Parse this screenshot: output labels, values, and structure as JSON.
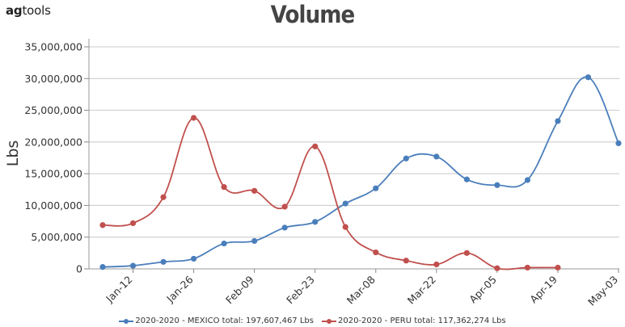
{
  "brand": {
    "part1": "ag",
    "part2": "tools"
  },
  "chart_data": {
    "type": "line",
    "title": "Volume",
    "xlabel": "",
    "ylabel": "Lbs",
    "ylim": [
      0,
      35000000
    ],
    "yticks": [
      "0",
      "5,000,000",
      "10,000,000",
      "15,000,000",
      "20,000,000",
      "25,000,000",
      "30,000,000",
      "35,000,000"
    ],
    "ytick_values": [
      0,
      5000000,
      10000000,
      15000000,
      20000000,
      25000000,
      30000000,
      35000000
    ],
    "x": [
      "2020-01-05",
      "2020-01-12",
      "2020-01-19",
      "2020-01-26",
      "2020-02-02",
      "2020-02-09",
      "2020-02-16",
      "2020-02-23",
      "2020-03-01",
      "2020-03-08",
      "2020-03-15",
      "2020-03-22",
      "2020-03-29",
      "2020-04-05",
      "2020-04-12",
      "2020-04-19",
      "2020-04-26",
      "2020-05-03"
    ],
    "xticks": [
      "Jan-12",
      "Jan-26",
      "Feb-09",
      "Feb-23",
      "Mar-08",
      "Mar-22",
      "Apr-05",
      "Apr-19",
      "May-03"
    ],
    "xtick_indices": [
      1,
      3,
      5,
      7,
      9,
      11,
      13,
      15,
      17
    ],
    "grid": true,
    "legend_position": "bottom",
    "series": [
      {
        "name": "2020-2020 - MEXICO total: 197,607,467 Lbs",
        "color": "#4a7ebb",
        "values": [
          300000,
          500000,
          1100000,
          1600000,
          4000000,
          4400000,
          6500000,
          7400000,
          10300000,
          12700000,
          17400000,
          17700000,
          14100000,
          13200000,
          14000000,
          23300000,
          30200000,
          19800000
        ]
      },
      {
        "name": "2020-2020 - PERU total: 117,362,274 Lbs",
        "color": "#c0504d",
        "values": [
          6900000,
          7200000,
          11300000,
          23800000,
          12900000,
          12300000,
          9800000,
          19300000,
          6600000,
          2600000,
          1300000,
          700000,
          2500000,
          100000,
          200000,
          200000,
          null,
          null
        ]
      }
    ]
  }
}
